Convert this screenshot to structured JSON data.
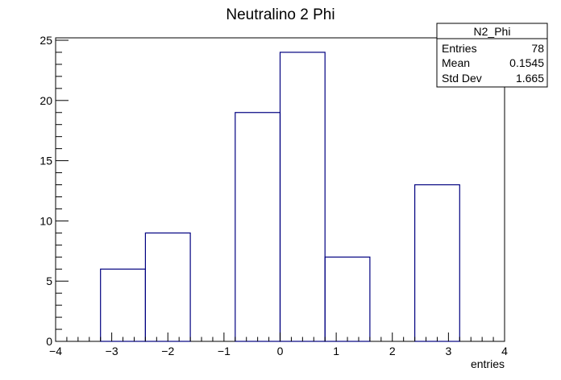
{
  "chart_data": {
    "type": "bar",
    "title": "Neutralino 2 Phi",
    "xlabel": "entries",
    "ylabel": "",
    "xlim": [
      -4,
      4
    ],
    "ylim": [
      0,
      25.2
    ],
    "bin_edges": [
      -4.0,
      -3.2,
      -2.4,
      -1.6,
      -0.8,
      0.0,
      0.8,
      1.6,
      2.4,
      3.2,
      4.0
    ],
    "values": [
      0,
      6,
      9,
      0,
      19,
      24,
      7,
      0,
      13,
      0
    ],
    "line_color": "#000080",
    "x_ticks": [
      -4,
      -3,
      -2,
      -1,
      0,
      1,
      2,
      3,
      4
    ],
    "x_tick_labels": [
      "−4",
      "−3",
      "−2",
      "−1",
      "0",
      "1",
      "2",
      "3",
      "4"
    ],
    "y_ticks": [
      0,
      5,
      10,
      15,
      20,
      25
    ],
    "y_tick_labels": [
      "0",
      "5",
      "10",
      "15",
      "20",
      "25"
    ],
    "stats_box": {
      "name": "N2_Phi",
      "rows": [
        {
          "label": "Entries",
          "value": "78"
        },
        {
          "label": "Mean",
          "value": "0.1545"
        },
        {
          "label": "Std Dev",
          "value": "1.665"
        }
      ]
    }
  }
}
